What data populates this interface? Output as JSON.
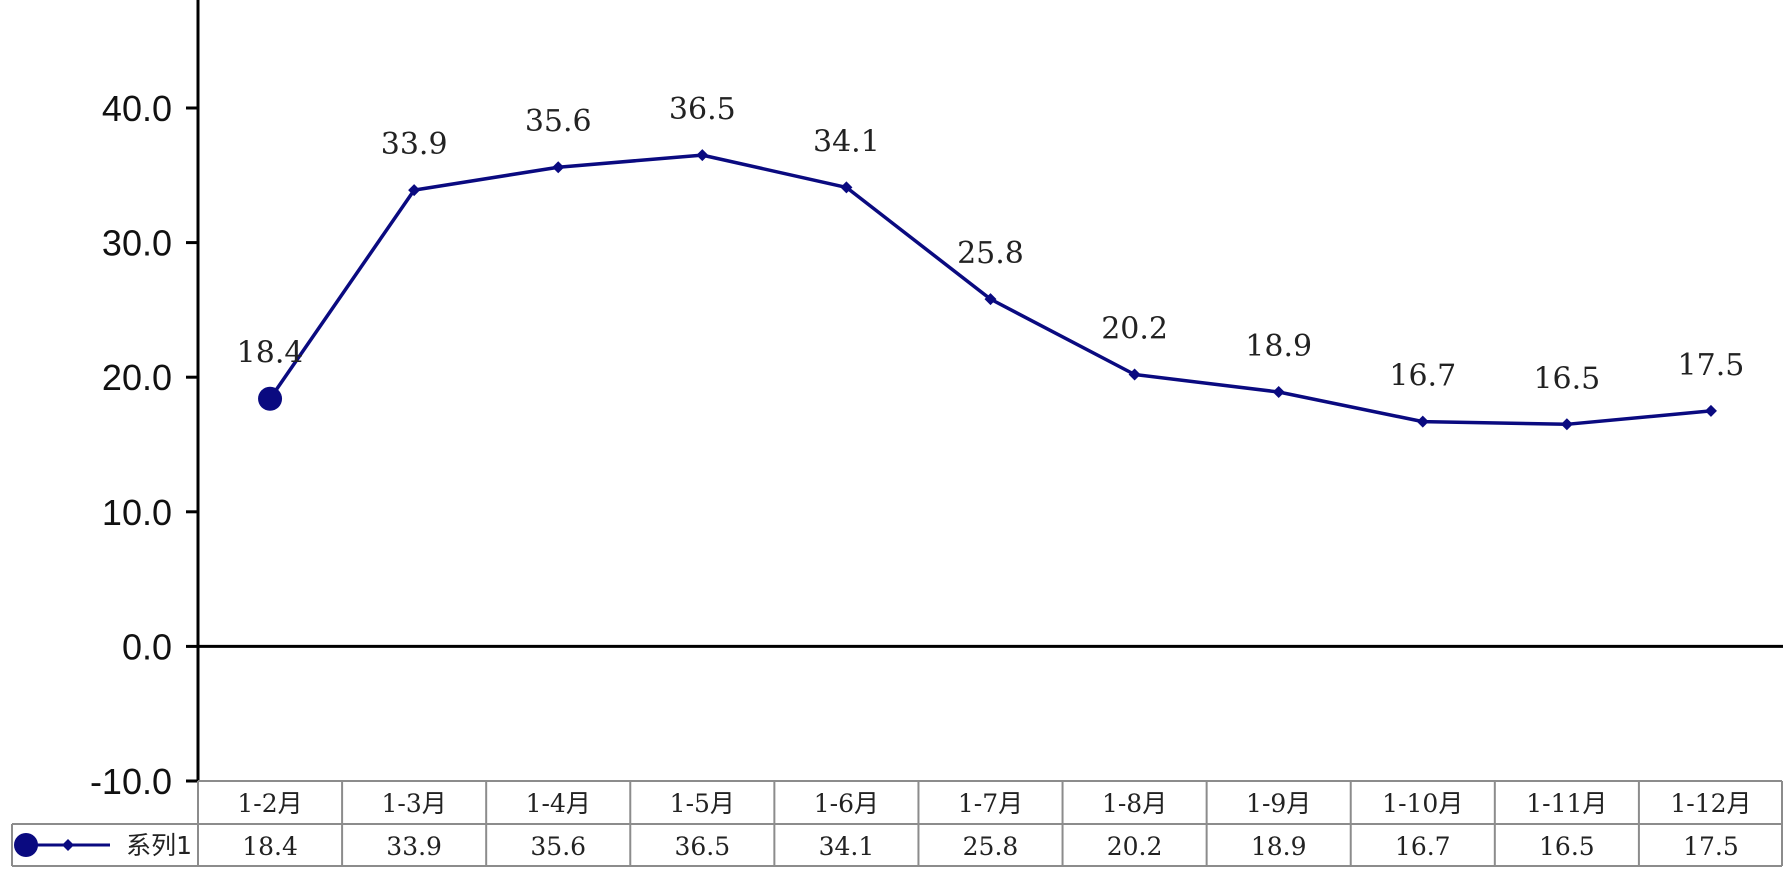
{
  "chart_data": {
    "type": "line",
    "title": "",
    "categories": [
      "1-2月",
      "1-3月",
      "1-4月",
      "1-5月",
      "1-6月",
      "1-7月",
      "1-8月",
      "1-9月",
      "1-10月",
      "1-11月",
      "1-12月"
    ],
    "series": [
      {
        "name": "系列1",
        "values": [
          18.4,
          33.9,
          35.6,
          36.5,
          34.1,
          25.8,
          20.2,
          18.9,
          16.7,
          16.5,
          17.5
        ]
      }
    ],
    "value_labels": [
      "18.4",
      "33.9",
      "35.6",
      "36.5",
      "34.1",
      "25.8",
      "20.2",
      "18.9",
      "16.7",
      "16.5",
      "17.5"
    ],
    "y_ticks": [
      "-10.0",
      "0.0",
      "10.0",
      "20.0",
      "30.0",
      "40.0"
    ],
    "ylim": [
      -10,
      40
    ],
    "data_table": true,
    "grid": false,
    "colors": {
      "series": "#0a0a80",
      "axis": "#000000",
      "table_border": "#8c8c8c"
    }
  }
}
